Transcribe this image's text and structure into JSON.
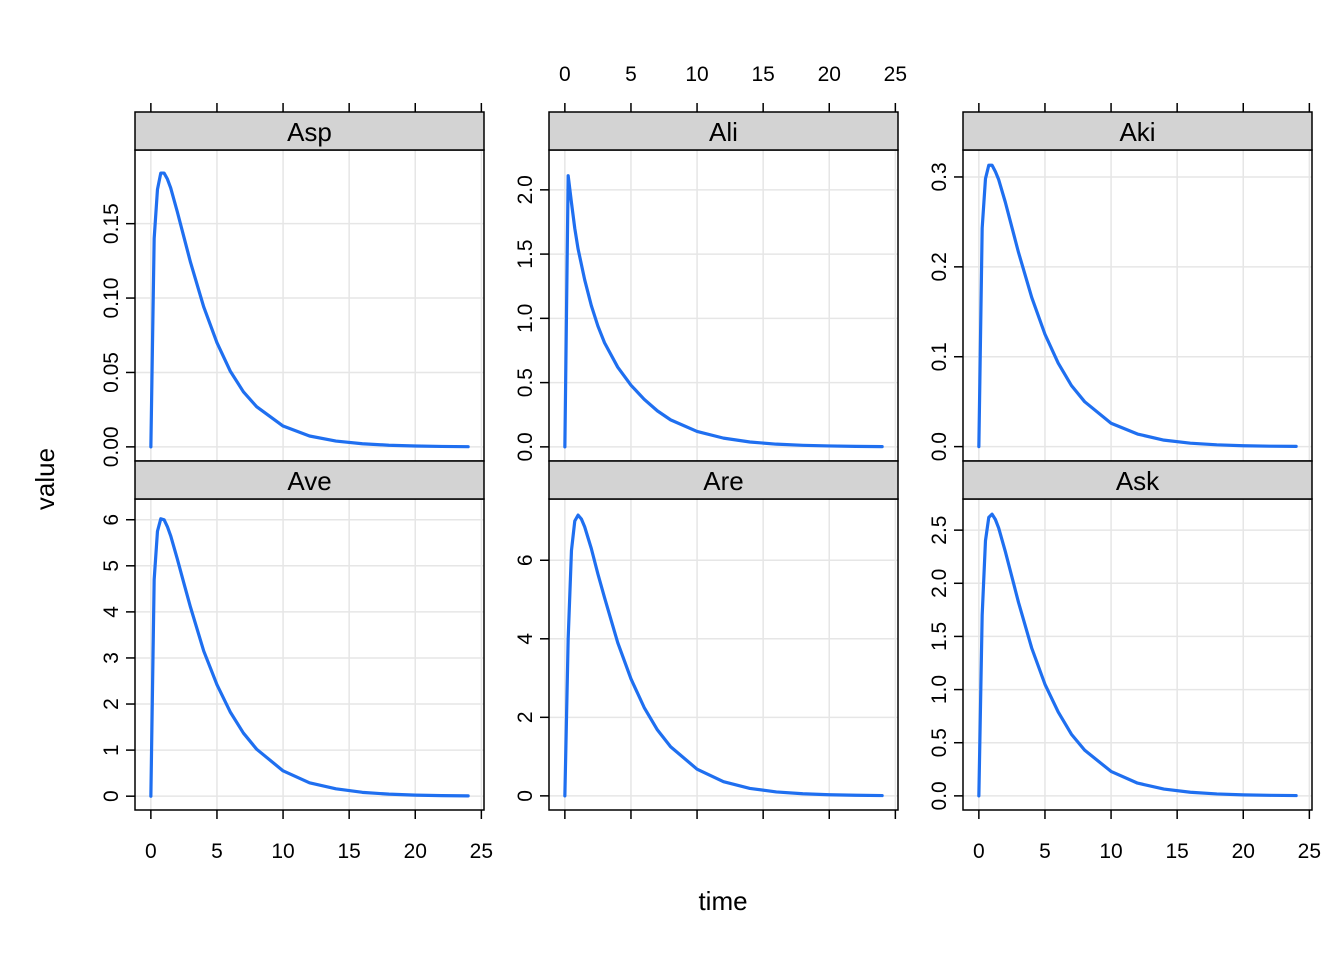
{
  "chart_data": {
    "type": "line",
    "layout": "lattice 3x2 panels",
    "xlabel": "time",
    "ylabel": "value",
    "xlim": [
      -1.2,
      25.2
    ],
    "x_ticks": [
      0,
      5,
      10,
      15,
      20,
      25
    ],
    "x_tick_labels": [
      "0",
      "5",
      "10",
      "15",
      "20",
      "25"
    ],
    "grid": true,
    "line_color": "#1f6ff0",
    "strip_color": "#d3d3d3",
    "grid_color": "#e6e6e6",
    "panels": [
      {
        "name": "Asp",
        "row": 0,
        "col": 0,
        "ylim": [
          -0.0095,
          0.1995
        ],
        "y_ticks": [
          0,
          0.05,
          0.1,
          0.15
        ],
        "y_tick_labels": [
          "0.00",
          "0.05",
          "0.10",
          "0.15"
        ],
        "x": [
          0,
          0.25,
          0.5,
          0.75,
          1,
          1.25,
          1.5,
          2,
          2.5,
          3,
          4,
          5,
          6,
          7,
          8,
          10,
          12,
          14,
          16,
          18,
          20,
          22,
          24
        ],
        "y": [
          0,
          0.14,
          0.173,
          0.184,
          0.184,
          0.18,
          0.174,
          0.158,
          0.141,
          0.124,
          0.094,
          0.07,
          0.051,
          0.037,
          0.027,
          0.014,
          0.0073,
          0.0039,
          0.0021,
          0.0011,
          0.0006,
          0.0003,
          0.0001
        ]
      },
      {
        "name": "Ali",
        "row": 0,
        "col": 1,
        "ylim": [
          -0.11,
          2.31
        ],
        "y_ticks": [
          0,
          0.5,
          1.0,
          1.5,
          2.0
        ],
        "y_tick_labels": [
          "0.0",
          "0.5",
          "1.0",
          "1.5",
          "2.0"
        ],
        "x": [
          0,
          0.25,
          0.5,
          0.75,
          1,
          1.5,
          2,
          2.5,
          3,
          4,
          5,
          6,
          7,
          8,
          10,
          12,
          14,
          16,
          18,
          20,
          22,
          24
        ],
        "y": [
          0,
          2.11,
          1.9,
          1.7,
          1.54,
          1.3,
          1.1,
          0.94,
          0.81,
          0.62,
          0.48,
          0.37,
          0.28,
          0.21,
          0.12,
          0.068,
          0.038,
          0.021,
          0.012,
          0.007,
          0.004,
          0.002
        ]
      },
      {
        "name": "Aki",
        "row": 0,
        "col": 2,
        "ylim": [
          -0.016,
          0.33
        ],
        "y_ticks": [
          0,
          0.1,
          0.2,
          0.3
        ],
        "y_tick_labels": [
          "0.0",
          "0.1",
          "0.2",
          "0.3"
        ],
        "x": [
          0,
          0.25,
          0.5,
          0.75,
          1,
          1.25,
          1.5,
          2,
          2.5,
          3,
          4,
          5,
          6,
          7,
          8,
          10,
          12,
          14,
          16,
          18,
          20,
          22,
          24
        ],
        "y": [
          0,
          0.243,
          0.298,
          0.313,
          0.313,
          0.306,
          0.297,
          0.272,
          0.244,
          0.216,
          0.166,
          0.125,
          0.093,
          0.068,
          0.05,
          0.026,
          0.014,
          0.0072,
          0.0038,
          0.002,
          0.001,
          0.0005,
          0.0003
        ]
      },
      {
        "name": "Ave",
        "row": 1,
        "col": 0,
        "ylim": [
          -0.3,
          6.45
        ],
        "y_ticks": [
          0,
          1,
          2,
          3,
          4,
          5,
          6
        ],
        "y_tick_labels": [
          "0",
          "1",
          "2",
          "3",
          "4",
          "5",
          "6"
        ],
        "x": [
          0,
          0.25,
          0.5,
          0.75,
          1,
          1.25,
          1.5,
          2,
          2.5,
          3,
          4,
          5,
          6,
          7,
          8,
          10,
          12,
          14,
          16,
          18,
          20,
          22,
          24
        ],
        "y": [
          0,
          4.7,
          5.75,
          6.02,
          6.0,
          5.85,
          5.65,
          5.15,
          4.62,
          4.1,
          3.15,
          2.42,
          1.83,
          1.37,
          1.02,
          0.55,
          0.29,
          0.16,
          0.083,
          0.044,
          0.023,
          0.012,
          0.006
        ]
      },
      {
        "name": "Are",
        "row": 1,
        "col": 1,
        "ylim": [
          -0.36,
          7.56
        ],
        "y_ticks": [
          0,
          2,
          4,
          6
        ],
        "y_tick_labels": [
          "0",
          "2",
          "4",
          "6"
        ],
        "x": [
          0,
          0.25,
          0.5,
          0.75,
          1,
          1.25,
          1.5,
          2,
          2.5,
          3,
          4,
          5,
          6,
          7,
          8,
          10,
          12,
          14,
          16,
          18,
          20,
          22,
          24
        ],
        "y": [
          0,
          4.0,
          6.25,
          7.0,
          7.15,
          7.05,
          6.85,
          6.3,
          5.65,
          5.05,
          3.9,
          2.98,
          2.25,
          1.68,
          1.25,
          0.68,
          0.36,
          0.19,
          0.1,
          0.054,
          0.029,
          0.015,
          0.008
        ]
      },
      {
        "name": "Ask",
        "row": 1,
        "col": 2,
        "ylim": [
          -0.133,
          2.793
        ],
        "y_ticks": [
          0,
          0.5,
          1.0,
          1.5,
          2.0,
          2.5
        ],
        "y_tick_labels": [
          "0.0",
          "0.5",
          "1.0",
          "1.5",
          "2.0",
          "2.5"
        ],
        "x": [
          0,
          0.25,
          0.5,
          0.75,
          1,
          1.25,
          1.5,
          2,
          2.5,
          3,
          4,
          5,
          6,
          7,
          8,
          10,
          12,
          14,
          16,
          18,
          20,
          22,
          24
        ],
        "y": [
          0,
          1.7,
          2.4,
          2.62,
          2.65,
          2.6,
          2.52,
          2.3,
          2.06,
          1.82,
          1.39,
          1.05,
          0.79,
          0.58,
          0.43,
          0.23,
          0.12,
          0.064,
          0.034,
          0.018,
          0.0095,
          0.005,
          0.0027
        ]
      }
    ]
  }
}
